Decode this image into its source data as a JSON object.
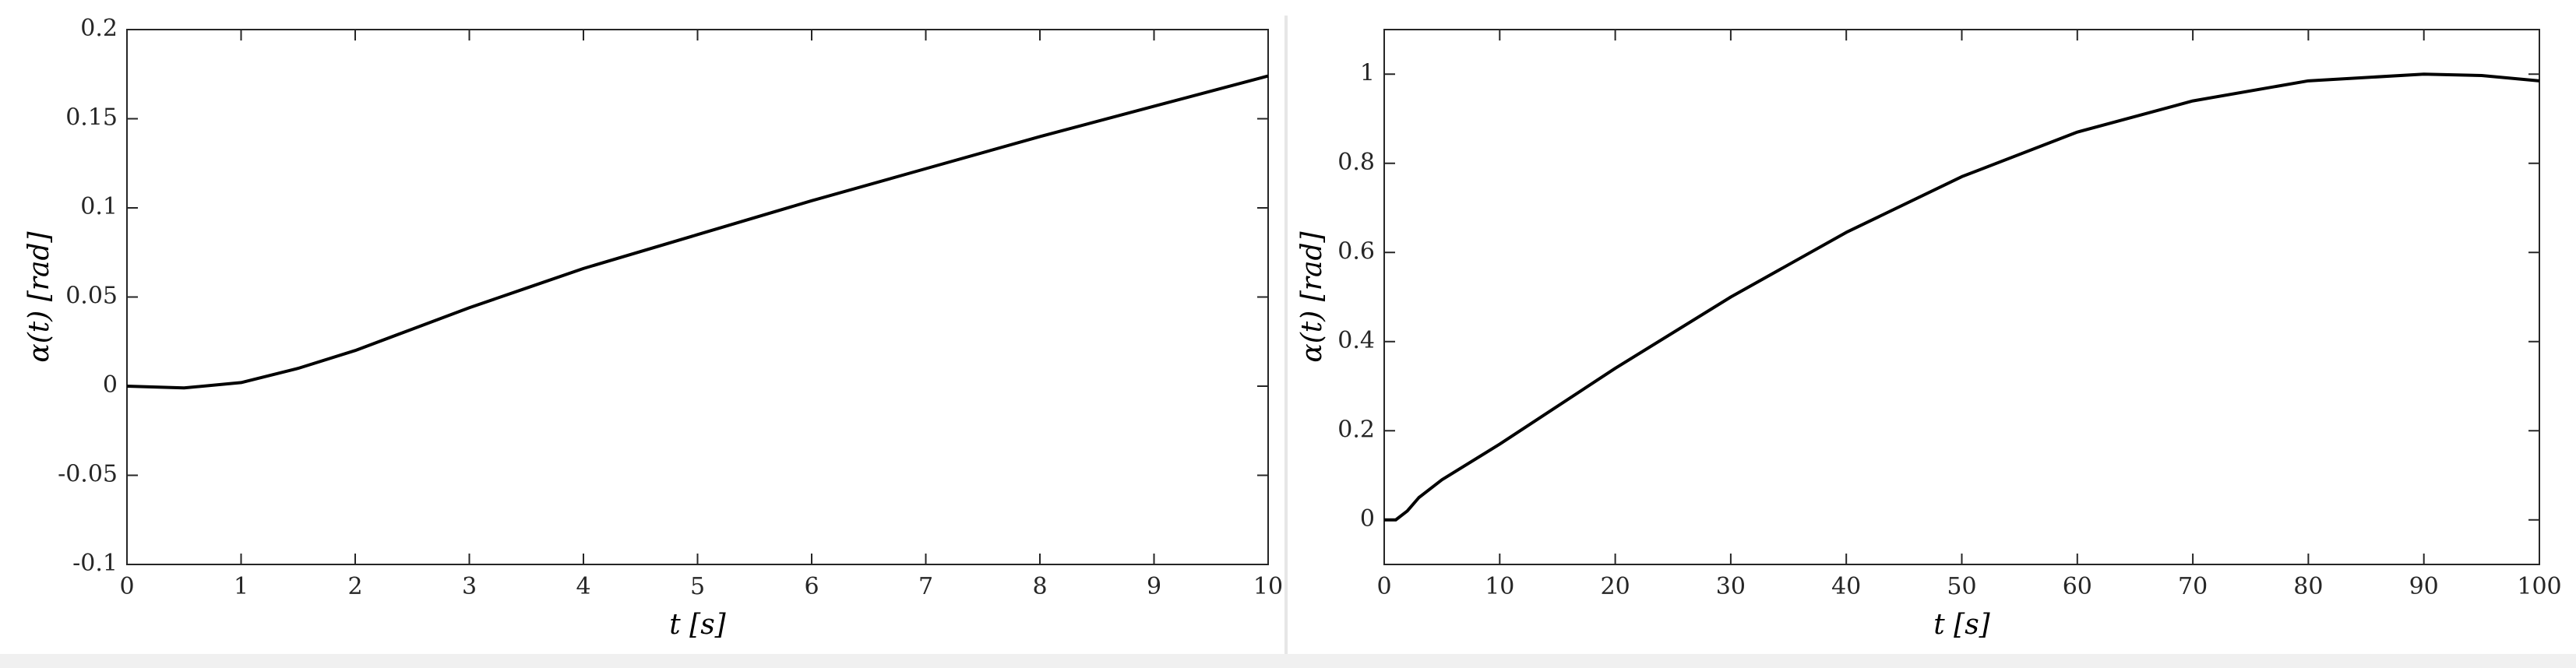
{
  "chart_data": [
    {
      "type": "line",
      "x_label": "t [s]",
      "y_label": "α(t) [rad]",
      "xlim": [
        0,
        10
      ],
      "ylim": [
        -0.1,
        0.2
      ],
      "xticks": [
        0,
        1,
        2,
        3,
        4,
        5,
        6,
        7,
        8,
        9,
        10
      ],
      "yticks": [
        -0.1,
        -0.05,
        0,
        0.05,
        0.1,
        0.15,
        0.2
      ],
      "color": "#000000",
      "x": [
        0,
        0.5,
        1,
        1.5,
        2,
        2.5,
        3,
        3.5,
        4,
        5,
        6,
        7,
        8,
        9,
        10
      ],
      "values": [
        0,
        -0.001,
        0.002,
        0.01,
        0.02,
        0.032,
        0.044,
        0.055,
        0.066,
        0.085,
        0.104,
        0.122,
        0.14,
        0.157,
        0.174
      ]
    },
    {
      "type": "line",
      "x_label": "t [s]",
      "y_label": "α(t) [rad]",
      "xlim": [
        0,
        100
      ],
      "ylim": [
        -0.1,
        1.1
      ],
      "xticks": [
        0,
        10,
        20,
        30,
        40,
        50,
        60,
        70,
        80,
        90,
        100
      ],
      "yticks": [
        0,
        0.2,
        0.4,
        0.6,
        0.8,
        1
      ],
      "color": "#000000",
      "x": [
        0,
        1,
        2,
        3,
        5,
        10,
        20,
        30,
        40,
        50,
        60,
        70,
        80,
        90,
        95,
        100
      ],
      "values": [
        0,
        0,
        0.02,
        0.05,
        0.09,
        0.17,
        0.34,
        0.5,
        0.645,
        0.77,
        0.87,
        0.94,
        0.985,
        1.0,
        0.997,
        0.985
      ]
    }
  ]
}
